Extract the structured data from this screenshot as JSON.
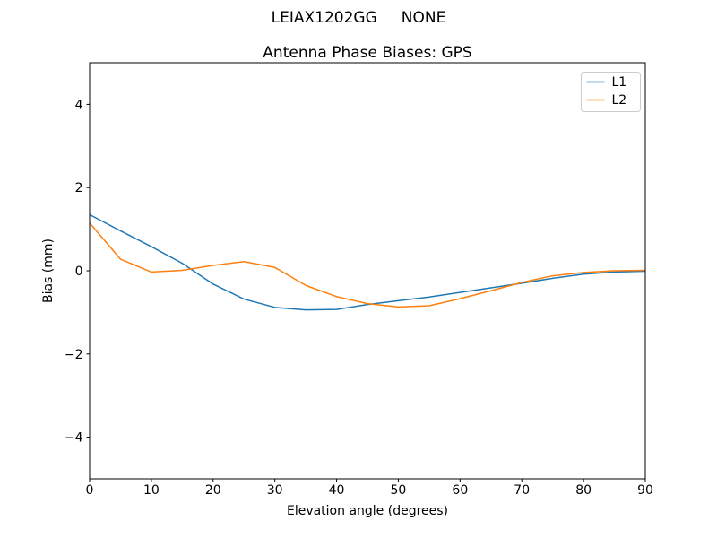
{
  "chart_data": {
    "type": "line",
    "suptitle": "LEIAX1202GG     NONE",
    "title": "Antenna Phase Biases: GPS",
    "xlabel": "Elevation angle (degrees)",
    "ylabel": "Bias (mm)",
    "xlim": [
      0,
      90
    ],
    "ylim": [
      -5,
      5
    ],
    "xticks": [
      0,
      10,
      20,
      30,
      40,
      50,
      60,
      70,
      80,
      90
    ],
    "yticks": [
      -4,
      -2,
      0,
      2,
      4
    ],
    "grid": false,
    "legend": {
      "position": "upper right"
    },
    "x": [
      0,
      5,
      10,
      15,
      20,
      25,
      30,
      35,
      40,
      45,
      50,
      55,
      60,
      65,
      70,
      75,
      80,
      85,
      90
    ],
    "series": [
      {
        "name": "L1",
        "color": "#1f77b4",
        "values": [
          1.35,
          0.96,
          0.58,
          0.18,
          -0.32,
          -0.68,
          -0.88,
          -0.94,
          -0.93,
          -0.81,
          -0.72,
          -0.63,
          -0.52,
          -0.41,
          -0.3,
          -0.18,
          -0.08,
          -0.03,
          -0.01
        ]
      },
      {
        "name": "L2",
        "color": "#ff7f0e",
        "values": [
          1.15,
          0.28,
          -0.03,
          0.01,
          0.13,
          0.22,
          0.08,
          -0.35,
          -0.62,
          -0.79,
          -0.87,
          -0.84,
          -0.67,
          -0.48,
          -0.28,
          -0.12,
          -0.04,
          0.0,
          0.01
        ]
      }
    ]
  },
  "colors": {
    "background": "#ffffff",
    "axis": "#000000",
    "legend_border": "#cccccc",
    "legend_fill": "#ffffff"
  }
}
